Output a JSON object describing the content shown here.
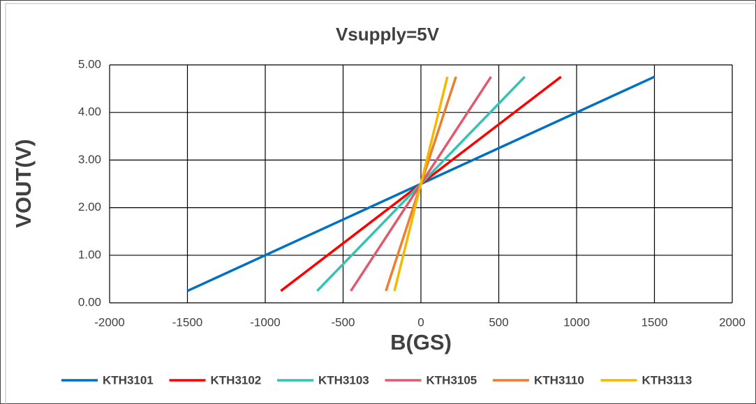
{
  "chart_data": {
    "type": "line",
    "title": "Vsupply=5V",
    "x_label": "B(GS)",
    "y_label": "VOUT(V)",
    "xlim": [
      -2000,
      2000
    ],
    "xticks": [
      -2000,
      -1500,
      -1000,
      -500,
      0,
      500,
      1000,
      1500,
      2000
    ],
    "ylim": [
      0,
      5
    ],
    "yticks": [
      {
        "value": 0,
        "label": "0.00"
      },
      {
        "value": 1,
        "label": "1.00"
      },
      {
        "value": 2,
        "label": "2.00"
      },
      {
        "value": 3,
        "label": "3.00"
      },
      {
        "value": 4,
        "label": "4.00"
      },
      {
        "value": 5,
        "label": "5.00"
      }
    ],
    "grid": true,
    "legend": "bottom",
    "series": [
      {
        "name": "KTH3101",
        "color": "#0070c0",
        "x": [
          -1500,
          0,
          1500
        ],
        "values": [
          0.25,
          2.5,
          4.75
        ]
      },
      {
        "name": "KTH3102",
        "color": "#ff0000",
        "x": [
          -900,
          0,
          900
        ],
        "values": [
          0.25,
          2.5,
          4.75
        ]
      },
      {
        "name": "KTH3103",
        "color": "#33c3b0",
        "x": [
          -667,
          0,
          667
        ],
        "values": [
          0.25,
          2.5,
          4.75
        ]
      },
      {
        "name": "KTH3105",
        "color": "#e05a6e",
        "x": [
          -450,
          0,
          450
        ],
        "values": [
          0.25,
          2.5,
          4.75
        ]
      },
      {
        "name": "KTH3110",
        "color": "#ed7d31",
        "x": [
          -225,
          0,
          225
        ],
        "values": [
          0.25,
          2.5,
          4.75
        ]
      },
      {
        "name": "KTH3113",
        "color": "#f5b800",
        "x": [
          -170,
          0,
          170
        ],
        "values": [
          0.25,
          2.5,
          4.75
        ]
      }
    ]
  }
}
